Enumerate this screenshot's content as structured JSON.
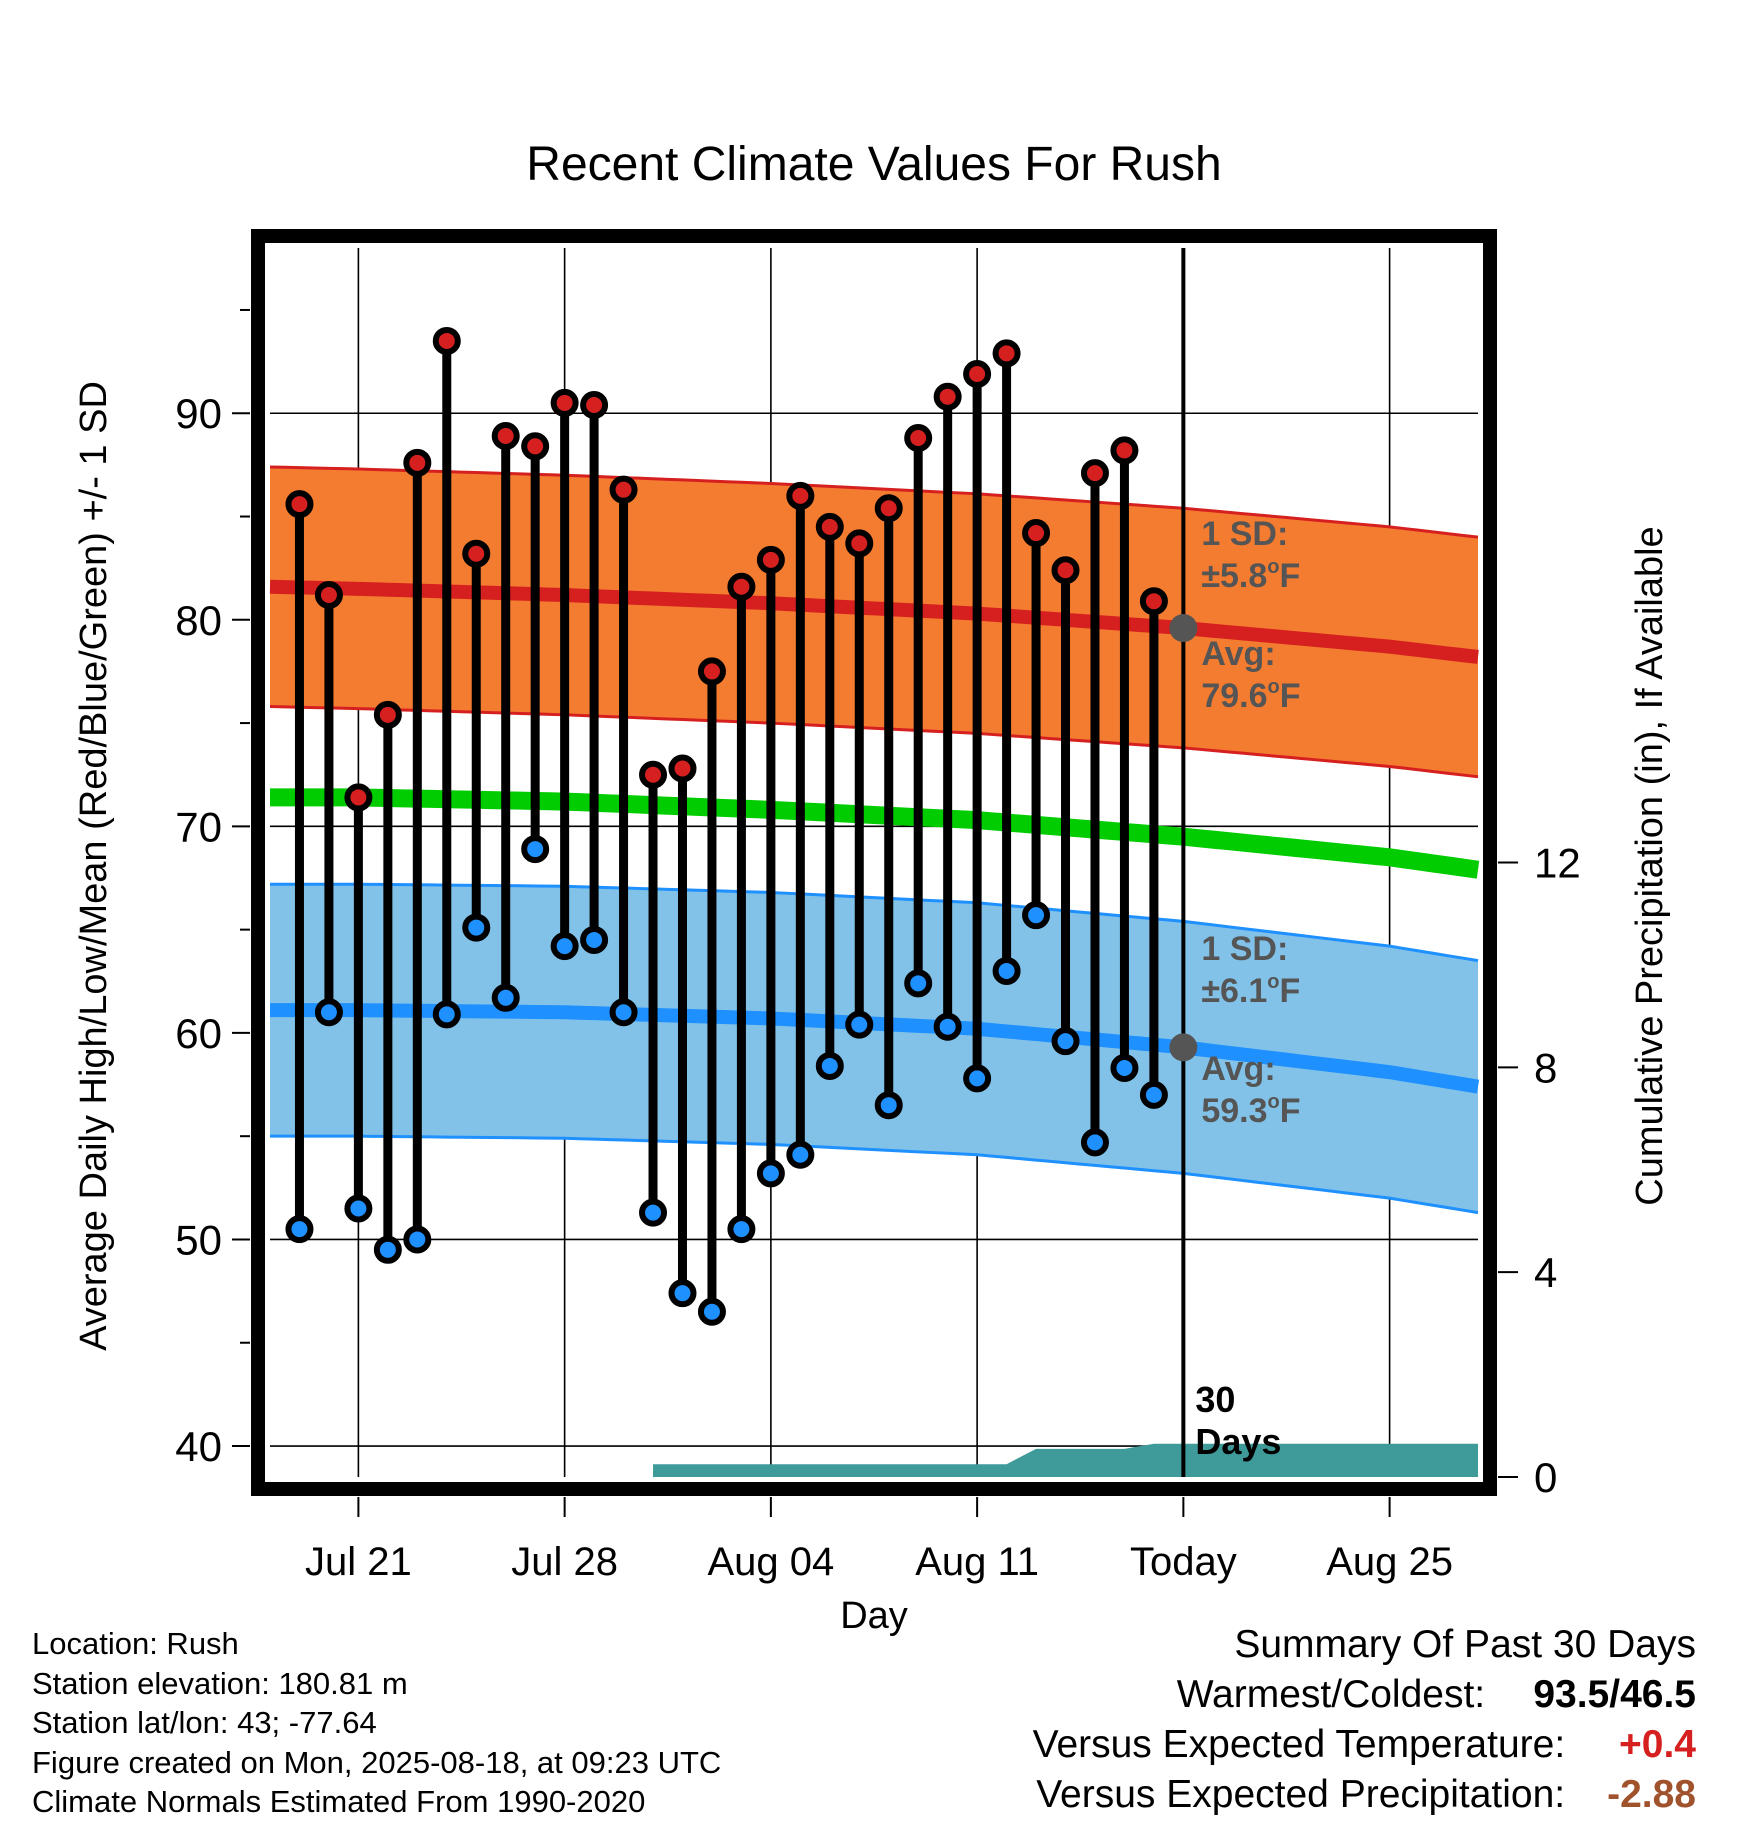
{
  "chart_data": {
    "type": "line",
    "title": "Recent Climate Values For Rush",
    "xlabel": "Day",
    "ylabel": "Average Daily High/Low/Mean (Red/Blue/Green) +/- 1 SD",
    "y2label": "Cumulative Precipitation (in), If Available",
    "ylim": [
      38.5,
      98
    ],
    "y2lim": [
      0,
      24
    ],
    "yticks": [
      "40",
      "50",
      "60",
      "70",
      "80",
      "90"
    ],
    "y2ticks": [
      "0",
      "4",
      "8",
      "12"
    ],
    "xlim": [
      "2025-07-18",
      "2025-08-28"
    ],
    "xticks": [
      {
        "date": "2025-07-21",
        "label": "Jul 21"
      },
      {
        "date": "2025-07-28",
        "label": "Jul 28"
      },
      {
        "date": "2025-08-04",
        "label": "Aug 04"
      },
      {
        "date": "2025-08-11",
        "label": "Aug 11"
      },
      {
        "date": "2025-08-18",
        "label": "Today"
      },
      {
        "date": "2025-08-25",
        "label": "Aug 25"
      }
    ],
    "grid": true,
    "today": "2025-08-18",
    "today_label": "30\nDays",
    "dates": [
      "2025-07-19",
      "2025-07-20",
      "2025-07-21",
      "2025-07-22",
      "2025-07-23",
      "2025-07-24",
      "2025-07-25",
      "2025-07-26",
      "2025-07-27",
      "2025-07-28",
      "2025-07-29",
      "2025-07-30",
      "2025-07-31",
      "2025-08-01",
      "2025-08-02",
      "2025-08-03",
      "2025-08-04",
      "2025-08-05",
      "2025-08-06",
      "2025-08-07",
      "2025-08-08",
      "2025-08-09",
      "2025-08-10",
      "2025-08-11",
      "2025-08-12",
      "2025-08-13",
      "2025-08-14",
      "2025-08-15",
      "2025-08-16",
      "2025-08-17"
    ],
    "series": [
      {
        "name": "High",
        "color": "#d62020",
        "values": [
          85.6,
          81.2,
          71.4,
          75.4,
          87.6,
          93.5,
          83.2,
          88.9,
          88.4,
          90.5,
          90.4,
          86.3,
          72.5,
          72.8,
          77.5,
          81.6,
          82.9,
          86.0,
          84.5,
          83.7,
          85.4,
          88.8,
          90.8,
          91.9,
          92.9,
          84.2,
          82.4,
          87.1,
          88.2,
          80.9
        ]
      },
      {
        "name": "Low",
        "color": "#1e90ff",
        "values": [
          50.5,
          61.0,
          51.5,
          49.5,
          50.0,
          60.9,
          65.1,
          61.7,
          68.9,
          64.2,
          64.5,
          61.0,
          51.3,
          47.4,
          46.5,
          50.5,
          53.2,
          54.1,
          58.4,
          60.4,
          56.5,
          62.4,
          60.3,
          57.8,
          63.0,
          65.7,
          59.6,
          54.7,
          58.3,
          57.0
        ]
      }
    ],
    "normals": {
      "dates": [
        "2025-07-18",
        "2025-07-21",
        "2025-07-28",
        "2025-08-04",
        "2025-08-11",
        "2025-08-18",
        "2025-08-25",
        "2025-08-28"
      ],
      "high_avg": [
        81.6,
        81.5,
        81.2,
        80.8,
        80.3,
        79.6,
        78.7,
        78.2
      ],
      "high_sd": 5.8,
      "low_avg": [
        61.1,
        61.1,
        61.0,
        60.7,
        60.2,
        59.3,
        58.1,
        57.4
      ],
      "low_sd": 6.1,
      "mean_avg": [
        71.4,
        71.4,
        71.2,
        70.8,
        70.3,
        69.5,
        68.5,
        67.9
      ]
    },
    "precip": {
      "dates": [
        "2025-07-18",
        "2025-07-31",
        "2025-07-31",
        "2025-08-12",
        "2025-08-13",
        "2025-08-16",
        "2025-08-17",
        "2025-08-28"
      ],
      "values": [
        0.0,
        0.0,
        0.25,
        0.25,
        0.55,
        0.55,
        0.65,
        0.65
      ]
    },
    "annotations": {
      "high_sd_label": [
        "1 SD:",
        "±5.8",
        "o",
        "F"
      ],
      "high_avg_label": [
        "Avg:",
        "79.6",
        "o",
        "F"
      ],
      "low_sd_label": [
        "1 SD:",
        "±6.1",
        "o",
        "F"
      ],
      "low_avg_label": [
        "Avg:",
        "59.3",
        "o",
        "F"
      ]
    },
    "colors": {
      "high_band": "#f47c30",
      "high_line": "#d62020",
      "low_band": "#82c2e8",
      "low_line": "#1e90ff",
      "mean_line": "#00cc00",
      "precip_fill": "#3f9a9a",
      "today_marker": "#555555",
      "annotation_text": "#555555"
    }
  },
  "footer": {
    "location": "Location: Rush",
    "elevation": "Station elevation: 180.81 m",
    "latlon": "Station lat/lon: 43; -77.64",
    "created": "Figure created on Mon, 2025-08-18, at 09:23 UTC",
    "normals": "Climate Normals Estimated From 1990-2020"
  },
  "summary": {
    "title": "Summary Of Past 30 Days",
    "warmest_label": "Warmest/Coldest:",
    "warmest_value": "93.5/46.5",
    "temp_label": "Versus Expected Temperature:",
    "temp_value": "+0.4",
    "precip_label": "Versus Expected Precipitation:",
    "precip_value": "-2.88"
  }
}
